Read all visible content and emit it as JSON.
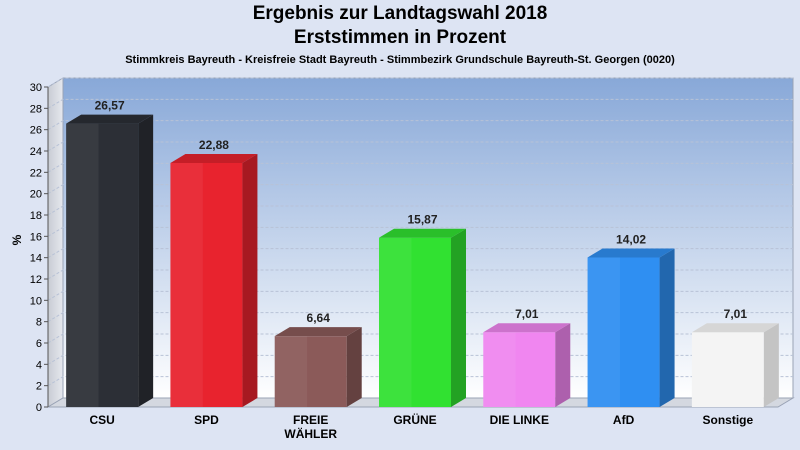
{
  "chart_data": {
    "type": "bar",
    "title": "Ergebnis zur Landtagswahl 2018",
    "title_line2": "Erststimmen in Prozent",
    "subtitle": "Stimmkreis Bayreuth - Kreisfreie Stadt Bayreuth - Stimmbezirk Grundschule Bayreuth-St. Georgen (0020)",
    "ylabel": "%",
    "xlabel": "",
    "ylim": [
      0,
      30
    ],
    "yticks": [
      0,
      2,
      4,
      6,
      8,
      10,
      12,
      14,
      16,
      18,
      20,
      22,
      24,
      26,
      28,
      30
    ],
    "categories": [
      "CSU",
      "SPD",
      "FREIE WÄHLER",
      "GRÜNE",
      "DIE LINKE",
      "AfD",
      "Sonstige"
    ],
    "category_lines": [
      [
        "CSU"
      ],
      [
        "SPD"
      ],
      [
        "FREIE",
        "WÄHLER"
      ],
      [
        "GRÜNE"
      ],
      [
        "DIE LINKE"
      ],
      [
        "AfD"
      ],
      [
        "Sonstige"
      ]
    ],
    "values": [
      26.57,
      22.88,
      6.64,
      15.87,
      7.01,
      14.02,
      7.01
    ],
    "value_labels": [
      "26,57",
      "22,88",
      "6,64",
      "15,87",
      "7,01",
      "14,02",
      "7,01"
    ],
    "colors": [
      "#2c2f36",
      "#e8232e",
      "#8b5a59",
      "#31e131",
      "#f086f0",
      "#2f8ff2",
      "#f4f4f4"
    ],
    "grid": true,
    "legend": "none"
  }
}
